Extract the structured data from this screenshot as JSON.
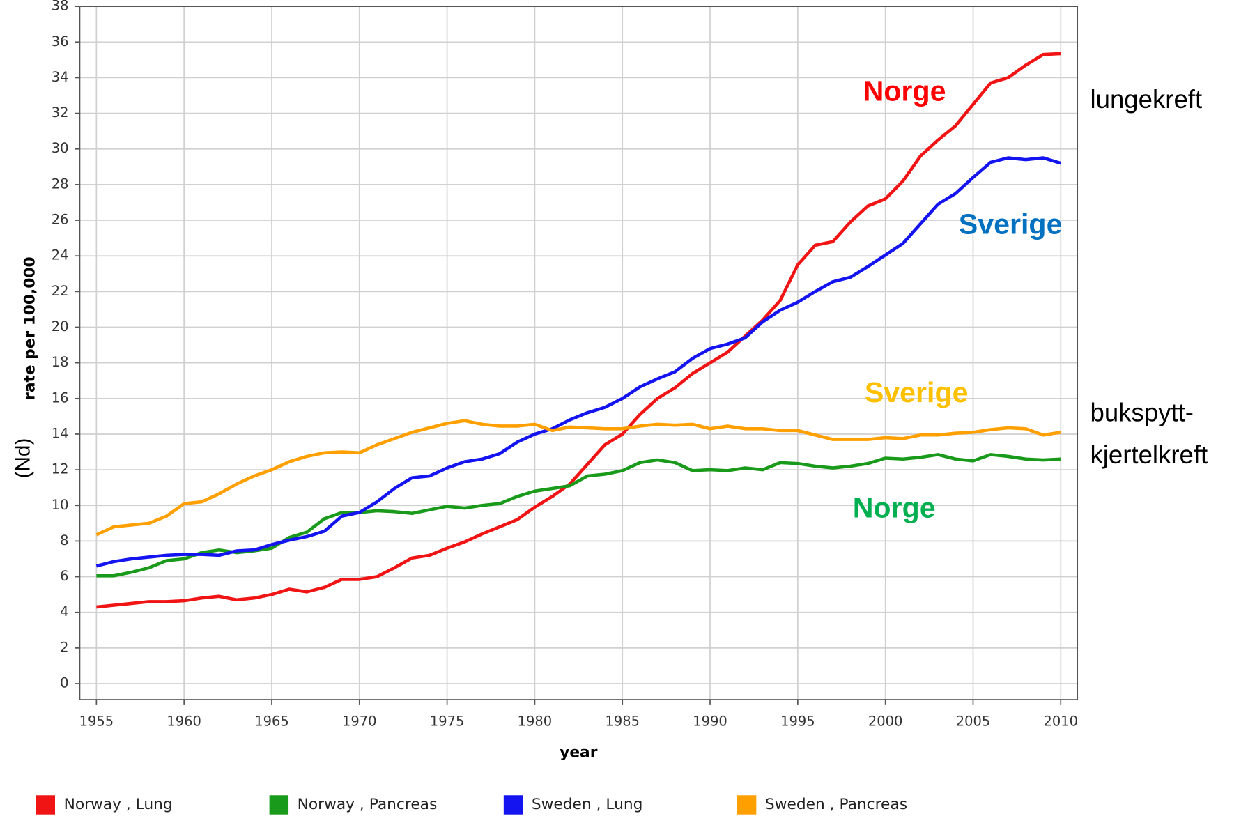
{
  "chart_data": {
    "type": "line",
    "x": [
      1955,
      1956,
      1957,
      1958,
      1959,
      1960,
      1961,
      1962,
      1963,
      1964,
      1965,
      1966,
      1967,
      1968,
      1969,
      1970,
      1971,
      1972,
      1973,
      1974,
      1975,
      1976,
      1977,
      1978,
      1979,
      1980,
      1981,
      1982,
      1983,
      1984,
      1985,
      1986,
      1987,
      1988,
      1989,
      1990,
      1991,
      1992,
      1993,
      1994,
      1995,
      1996,
      1997,
      1998,
      1999,
      2000,
      2001,
      2002,
      2003,
      2004,
      2005,
      2006,
      2007,
      2008,
      2009,
      2010
    ],
    "series": [
      {
        "name": "Norway , Lung",
        "color": "#f01414",
        "values": [
          4.3,
          4.4,
          4.5,
          4.6,
          4.6,
          4.65,
          4.8,
          4.9,
          4.7,
          4.8,
          5.0,
          5.3,
          5.15,
          5.4,
          5.85,
          5.85,
          6.0,
          6.5,
          7.05,
          7.2,
          7.6,
          7.95,
          8.4,
          8.8,
          9.2,
          9.9,
          10.5,
          11.2,
          12.3,
          13.4,
          14.0,
          15.1,
          16.0,
          16.6,
          17.4,
          18.0,
          18.6,
          19.5,
          20.4,
          21.5,
          23.5,
          24.6,
          24.8,
          25.9,
          26.8,
          27.2,
          28.2,
          29.6,
          30.5,
          31.3,
          32.5,
          33.7,
          34.0,
          34.7,
          35.3,
          35.35
        ]
      },
      {
        "name": "Norway , Pancreas",
        "color": "#1a9a1a",
        "values": [
          6.05,
          6.05,
          6.25,
          6.5,
          6.9,
          7.0,
          7.35,
          7.5,
          7.35,
          7.45,
          7.6,
          8.2,
          8.5,
          9.25,
          9.6,
          9.6,
          9.7,
          9.65,
          9.55,
          9.75,
          9.95,
          9.85,
          10.0,
          10.1,
          10.5,
          10.8,
          10.95,
          11.1,
          11.65,
          11.75,
          11.95,
          12.4,
          12.55,
          12.4,
          11.95,
          12.0,
          11.95,
          12.1,
          12.0,
          12.4,
          12.35,
          12.2,
          12.1,
          12.2,
          12.35,
          12.65,
          12.6,
          12.7,
          12.85,
          12.6,
          12.5,
          12.85,
          12.75,
          12.6,
          12.55,
          12.6
        ]
      },
      {
        "name": "Sweden , Lung",
        "color": "#1414f0",
        "values": [
          6.6,
          6.85,
          7.0,
          7.1,
          7.2,
          7.25,
          7.25,
          7.2,
          7.45,
          7.5,
          7.8,
          8.05,
          8.25,
          8.55,
          9.4,
          9.6,
          10.2,
          10.95,
          11.55,
          11.65,
          12.1,
          12.45,
          12.6,
          12.9,
          13.55,
          14.0,
          14.3,
          14.8,
          15.2,
          15.5,
          16.0,
          16.65,
          17.1,
          17.5,
          18.25,
          18.8,
          19.05,
          19.4,
          20.3,
          20.95,
          21.4,
          22.0,
          22.55,
          22.8,
          23.4,
          24.05,
          24.7,
          25.8,
          26.9,
          27.5,
          28.4,
          29.25,
          29.5,
          29.4,
          29.5,
          29.2
        ]
      },
      {
        "name": "Sweden , Pancreas",
        "color": "#ff9f00",
        "values": [
          8.35,
          8.8,
          8.9,
          9.0,
          9.4,
          10.1,
          10.2,
          10.65,
          11.2,
          11.65,
          12.0,
          12.45,
          12.75,
          12.95,
          13.0,
          12.95,
          13.4,
          13.75,
          14.1,
          14.35,
          14.6,
          14.75,
          14.55,
          14.45,
          14.45,
          14.55,
          14.2,
          14.4,
          14.35,
          14.3,
          14.3,
          14.45,
          14.55,
          14.5,
          14.55,
          14.3,
          14.45,
          14.3,
          14.3,
          14.2,
          14.2,
          13.95,
          13.7,
          13.7,
          13.7,
          13.8,
          13.75,
          13.95,
          13.95,
          14.05,
          14.1,
          14.25,
          14.35,
          14.3,
          13.95,
          14.1
        ]
      }
    ],
    "xlim": [
      1954.05,
      2010.95
    ],
    "ylim": [
      -0.9,
      38
    ],
    "xticks": [
      1955,
      1960,
      1965,
      1970,
      1975,
      1980,
      1985,
      1990,
      1995,
      2000,
      2005,
      2010
    ],
    "yticks": [
      0,
      2,
      4,
      6,
      8,
      10,
      12,
      14,
      16,
      18,
      20,
      22,
      24,
      26,
      28,
      30,
      32,
      34,
      36,
      38
    ],
    "grid": true,
    "xlabel": "year",
    "ylabel": "rate per 100,000",
    "ylabel_unit": "(Nd)",
    "annotations": [
      {
        "text": "Norge",
        "color": "#ff0000"
      },
      {
        "text": "Sverige",
        "color": "#0070c0"
      },
      {
        "text": "Sverige",
        "color": "#ffc000"
      },
      {
        "text": "Norge",
        "color": "#00b050"
      }
    ],
    "side_labels": [
      "lungekreft",
      "bukspytt-",
      "kjertelkreft"
    ],
    "legend": "bottom"
  }
}
